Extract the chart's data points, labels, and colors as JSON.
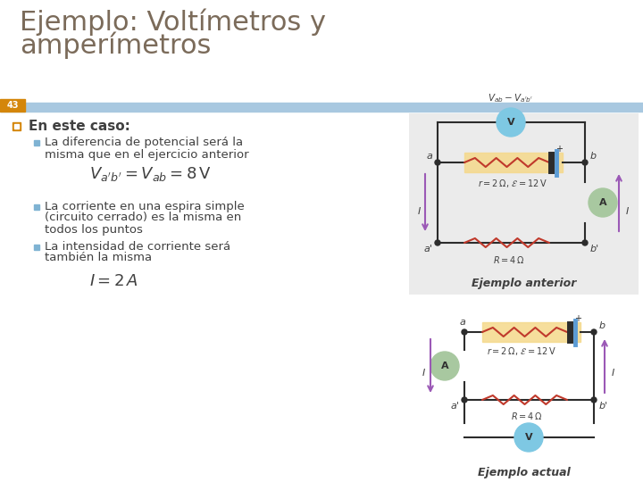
{
  "title_line1": "Ejemplo: Voltímetros y",
  "title_line2": "amperímetros",
  "slide_number": "43",
  "title_color": "#7B6B5A",
  "title_fontsize": 22,
  "background_color": "#FFFFFF",
  "text_color": "#404040",
  "header_bar_color": "#A8C8E0",
  "slide_num_bg": "#D4860A",
  "circuit1_bg": "#EBEBEB",
  "battery_bg": "#F5D98B",
  "voltmeter_color": "#7EC8E3",
  "ammeter_color": "#A8C8A0",
  "wire_color": "#2C2C2C",
  "resistor_color": "#C0392B",
  "arrow_color": "#9B59B6",
  "bullet_sq_color": "#7FB3D3",
  "ejemplo_anterior_label": "Ejemplo anterior",
  "ejemplo_actual_label": "Ejemplo actual"
}
